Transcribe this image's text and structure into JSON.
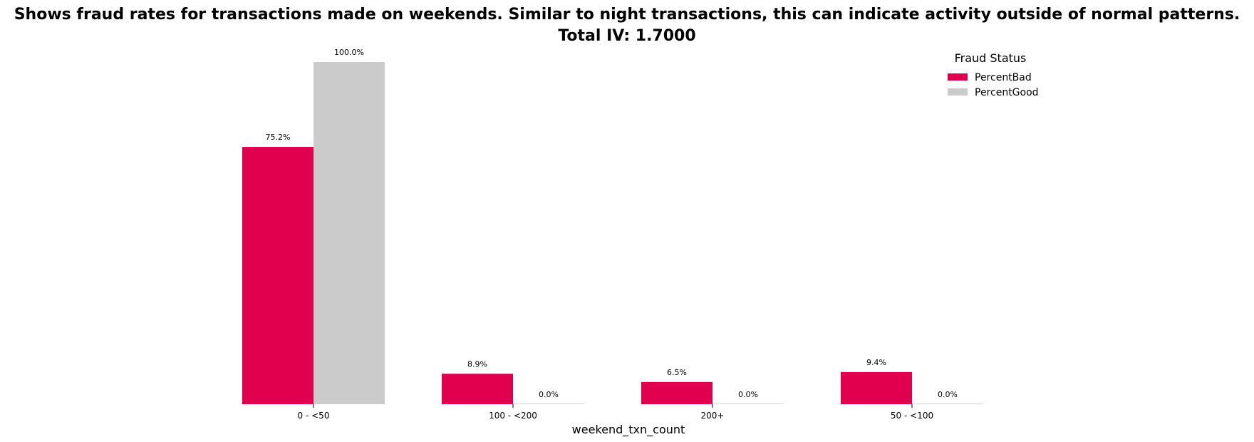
{
  "chart_data": {
    "type": "bar",
    "title": "Shows fraud rates for transactions made on weekends. Similar to night transactions, this can indicate activity outside of normal patterns.",
    "subtitle": "Total IV: 1.7000",
    "xlabel": "weekend_txn_count",
    "ylabel": "",
    "categories": [
      "0 - <50",
      "100 - <200",
      "200+",
      "50 - <100"
    ],
    "series": [
      {
        "name": "PercentBad",
        "values": [
          75.2,
          8.9,
          6.5,
          9.4
        ],
        "labels": [
          "75.2%",
          "8.9%",
          "6.5%",
          "9.4%"
        ],
        "color": "#E0004D"
      },
      {
        "name": "PercentGood",
        "values": [
          100.0,
          0.0,
          0.0,
          0.0
        ],
        "labels": [
          "100.0%",
          "0.0%",
          "0.0%",
          "0.0%"
        ],
        "color": "#CBCBCB"
      }
    ],
    "ylim": [
      0,
      100
    ],
    "grid": false,
    "legend": {
      "title": "Fraud Status",
      "placement": "top-right"
    }
  }
}
